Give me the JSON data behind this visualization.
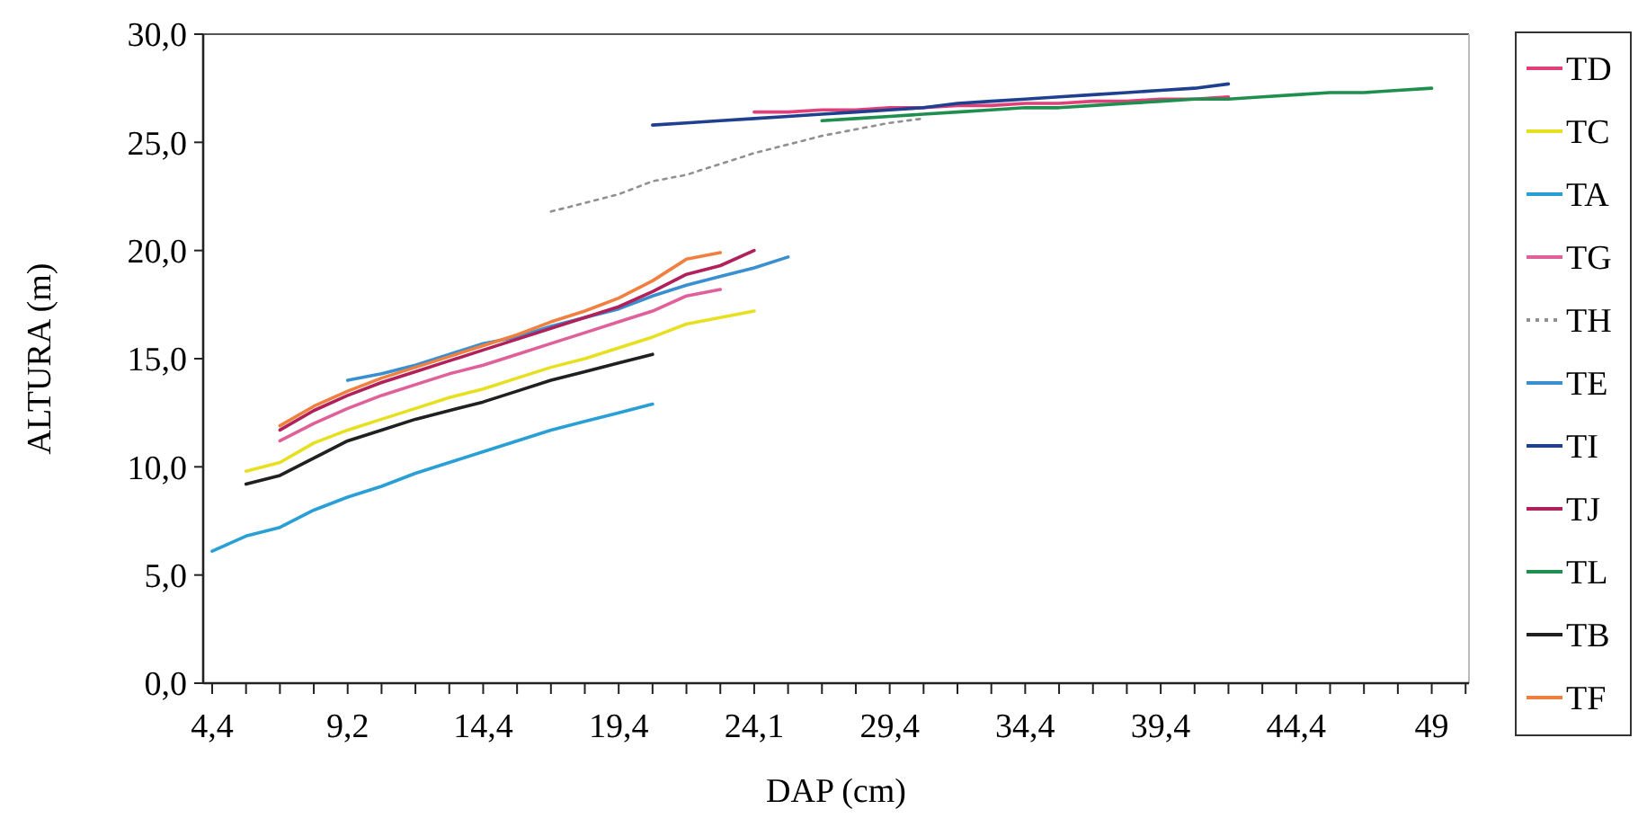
{
  "chart_data": {
    "type": "line",
    "xlabel": "DAP (cm)",
    "ylabel": "ALTURA (m)",
    "categories": [
      "4,4",
      null,
      null,
      null,
      "9,2",
      null,
      null,
      null,
      "14,4",
      null,
      null,
      null,
      "19,4",
      null,
      null,
      null,
      "24,1",
      null,
      null,
      null,
      "29,4",
      null,
      null,
      null,
      "34,4",
      null,
      null,
      null,
      "39,4",
      null,
      null,
      null,
      "44,4",
      null,
      null,
      null,
      "49",
      null
    ],
    "ylim": [
      0,
      30
    ],
    "yticks": [
      {
        "value": 0,
        "label": "0,0"
      },
      {
        "value": 5,
        "label": "5,0"
      },
      {
        "value": 10,
        "label": "10,0"
      },
      {
        "value": 15,
        "label": "15,0"
      },
      {
        "value": 20,
        "label": "20,0"
      },
      {
        "value": 25,
        "label": "25,0"
      },
      {
        "value": 30,
        "label": "30,0"
      }
    ],
    "legend": "right",
    "marker": "none",
    "line_style": "solid",
    "series": [
      {
        "name": "TD",
        "color": "#e0407a",
        "values": [
          null,
          null,
          null,
          null,
          null,
          null,
          null,
          null,
          null,
          null,
          null,
          null,
          null,
          null,
          null,
          null,
          26.4,
          26.4,
          26.5,
          26.5,
          26.6,
          26.6,
          26.7,
          26.7,
          26.8,
          26.8,
          26.9,
          26.9,
          27.0,
          27.0,
          27.1,
          null,
          null,
          null,
          null,
          null,
          null,
          null
        ]
      },
      {
        "name": "TC",
        "color": "#e6e020",
        "values": [
          null,
          9.8,
          10.2,
          11.1,
          11.7,
          12.2,
          12.7,
          13.2,
          13.6,
          14.1,
          14.6,
          15.0,
          15.5,
          16.0,
          16.6,
          16.9,
          17.2,
          null,
          null,
          null,
          null,
          null,
          null,
          null,
          null,
          null,
          null,
          null,
          null,
          null,
          null,
          null,
          null,
          null,
          null,
          null,
          null,
          null
        ]
      },
      {
        "name": "TA",
        "color": "#2a9fd6",
        "values": [
          6.1,
          6.8,
          7.2,
          8.0,
          8.6,
          9.1,
          9.7,
          10.2,
          10.7,
          11.2,
          11.7,
          12.1,
          12.5,
          12.9,
          null,
          null,
          null,
          null,
          null,
          null,
          null,
          null,
          null,
          null,
          null,
          null,
          null,
          null,
          null,
          null,
          null,
          null,
          null,
          null,
          null,
          null,
          null,
          null
        ]
      },
      {
        "name": "TG",
        "color": "#e0609a",
        "values": [
          null,
          null,
          11.2,
          12.0,
          12.7,
          13.3,
          13.8,
          14.3,
          14.7,
          15.2,
          15.7,
          16.2,
          16.7,
          17.2,
          17.9,
          18.2,
          null,
          null,
          null,
          null,
          null,
          null,
          null,
          null,
          null,
          null,
          null,
          null,
          null,
          null,
          null,
          null,
          null,
          null,
          null,
          null,
          null,
          null
        ]
      },
      {
        "name": "TH",
        "color": "#909090",
        "line_style": "dotted",
        "values": [
          null,
          null,
          null,
          null,
          null,
          null,
          null,
          null,
          null,
          null,
          21.8,
          22.2,
          22.6,
          23.2,
          23.5,
          24.0,
          24.5,
          24.9,
          25.3,
          25.6,
          25.9,
          26.1,
          null,
          null,
          null,
          null,
          null,
          null,
          null,
          null,
          null,
          null,
          null,
          null,
          null,
          null,
          null,
          null
        ]
      },
      {
        "name": "TE",
        "color": "#3a8fd0",
        "values": [
          null,
          null,
          null,
          null,
          14.0,
          14.3,
          14.7,
          15.2,
          15.7,
          16.0,
          16.5,
          16.9,
          17.3,
          17.9,
          18.4,
          18.8,
          19.2,
          19.7,
          null,
          null,
          null,
          null,
          null,
          null,
          null,
          null,
          null,
          null,
          null,
          null,
          null,
          null,
          null,
          null,
          null,
          null,
          null,
          null
        ]
      },
      {
        "name": "TI",
        "color": "#1f3f8f",
        "values": [
          null,
          null,
          null,
          null,
          null,
          null,
          null,
          null,
          null,
          null,
          null,
          null,
          null,
          25.8,
          25.9,
          26.0,
          26.1,
          26.2,
          26.3,
          26.4,
          26.5,
          26.6,
          26.8,
          26.9,
          27.0,
          27.1,
          27.2,
          27.3,
          27.4,
          27.5,
          27.7,
          null,
          null,
          null,
          null,
          null,
          null,
          null
        ]
      },
      {
        "name": "TJ",
        "color": "#b0205a",
        "values": [
          null,
          null,
          11.7,
          12.6,
          13.3,
          13.9,
          14.4,
          14.9,
          15.4,
          15.9,
          16.4,
          16.9,
          17.4,
          18.1,
          18.9,
          19.3,
          20.0,
          null,
          null,
          null,
          null,
          null,
          null,
          null,
          null,
          null,
          null,
          null,
          null,
          null,
          null,
          null,
          null,
          null,
          null,
          null,
          null,
          null
        ]
      },
      {
        "name": "TL",
        "color": "#1f8f4f",
        "values": [
          null,
          null,
          null,
          null,
          null,
          null,
          null,
          null,
          null,
          null,
          null,
          null,
          null,
          null,
          null,
          null,
          null,
          null,
          26.0,
          26.1,
          26.2,
          26.3,
          26.4,
          26.5,
          26.6,
          26.6,
          26.7,
          26.8,
          26.9,
          27.0,
          27.0,
          27.1,
          27.2,
          27.3,
          27.3,
          27.4,
          27.5,
          null
        ]
      },
      {
        "name": "TB",
        "color": "#202020",
        "values": [
          null,
          9.2,
          9.6,
          10.4,
          11.2,
          11.7,
          12.2,
          12.6,
          13.0,
          13.5,
          14.0,
          14.4,
          14.8,
          15.2,
          null,
          null,
          null,
          null,
          null,
          null,
          null,
          null,
          null,
          null,
          null,
          null,
          null,
          null,
          null,
          null,
          null,
          null,
          null,
          null,
          null,
          null,
          null,
          null
        ]
      },
      {
        "name": "TF",
        "color": "#f08040",
        "values": [
          null,
          null,
          11.9,
          12.8,
          13.5,
          14.1,
          14.6,
          15.1,
          15.6,
          16.1,
          16.7,
          17.2,
          17.8,
          18.6,
          19.6,
          19.9,
          null,
          null,
          null,
          null,
          null,
          null,
          null,
          null,
          null,
          null,
          null,
          null,
          null,
          null,
          null,
          null,
          null,
          null,
          null,
          null,
          null,
          null
        ]
      }
    ]
  }
}
